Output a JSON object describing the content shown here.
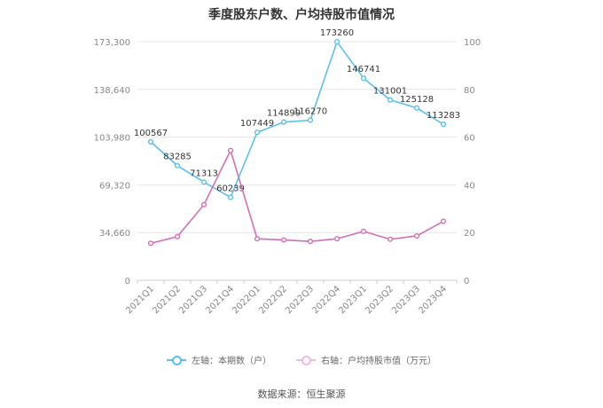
{
  "chart_data": {
    "type": "line",
    "title": "季度股东户数、户均持股市值情况",
    "categories": [
      "2021Q1",
      "2021Q2",
      "2021Q3",
      "2021Q4",
      "2022Q1",
      "2022Q2",
      "2022Q3",
      "2022Q4",
      "2023Q1",
      "2023Q2",
      "2023Q3",
      "2023Q4"
    ],
    "left_axis": {
      "ticks": [
        "0",
        "34,660",
        "69,320",
        "103,980",
        "138,640",
        "173,300"
      ],
      "ylim": [
        0,
        173300
      ]
    },
    "right_axis": {
      "ticks": [
        "0",
        "20",
        "40",
        "60",
        "80",
        "100"
      ],
      "ylim": [
        0,
        100
      ]
    },
    "series": [
      {
        "name": "左轴：本期数（户）",
        "axis": "left",
        "color": "#5bc0eb",
        "values": [
          100567,
          83285,
          71313,
          60239,
          107449,
          114899,
          116270,
          173260,
          146741,
          131001,
          125128,
          113283
        ],
        "labels": [
          "100567",
          "83285",
          "71313",
          "60239",
          "107449",
          "114899",
          "116270",
          "173260",
          "146741",
          "131001",
          "125128",
          "113283"
        ]
      },
      {
        "name": "右轴：户均持股市值（万元）",
        "axis": "right",
        "color": "#d36fb4",
        "values": [
          15.5,
          18.3,
          31.7,
          54.4,
          17.4,
          16.9,
          16.3,
          17.4,
          20.5,
          17.2,
          18.6,
          24.7
        ]
      }
    ],
    "grid": true,
    "legend_position": "bottom"
  },
  "source_text": "数据来源：恒生聚源"
}
